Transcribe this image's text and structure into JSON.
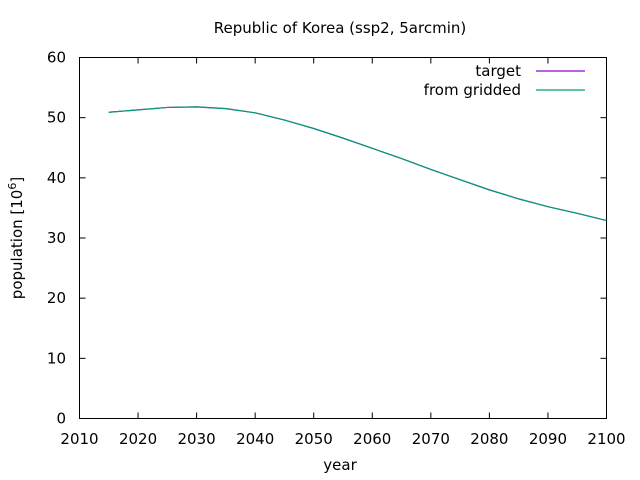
{
  "chart_data": {
    "type": "line",
    "title": "Republic of Korea (ssp2, 5arcmin)",
    "xlabel": "year",
    "ylabel": "population [10",
    "ylabel_superscript": "6",
    "ylabel_suffix": "]",
    "xlim": [
      2010,
      2100
    ],
    "ylim": [
      0,
      60
    ],
    "xticks": [
      "2010",
      "2020",
      "2030",
      "2040",
      "2050",
      "2060",
      "2070",
      "2080",
      "2090",
      "2100"
    ],
    "yticks": [
      "0",
      "10",
      "20",
      "30",
      "40",
      "50",
      "60"
    ],
    "grid": false,
    "legend_position": "top-right",
    "x": [
      2015,
      2020,
      2025,
      2030,
      2035,
      2040,
      2045,
      2050,
      2055,
      2060,
      2065,
      2070,
      2075,
      2080,
      2085,
      2090,
      2095,
      2100
    ],
    "series": [
      {
        "name": "target",
        "color": "#9400d3",
        "values": [
          50.9,
          51.3,
          51.7,
          51.8,
          51.5,
          50.8,
          49.6,
          48.2,
          46.6,
          44.9,
          43.2,
          41.4,
          39.7,
          38.0,
          36.5,
          35.2,
          34.1,
          32.9
        ]
      },
      {
        "name": "from gridded",
        "color": "#009e73",
        "values": [
          50.9,
          51.3,
          51.7,
          51.8,
          51.5,
          50.8,
          49.6,
          48.2,
          46.6,
          44.9,
          43.2,
          41.4,
          39.7,
          38.0,
          36.5,
          35.2,
          34.1,
          32.9
        ]
      }
    ]
  }
}
